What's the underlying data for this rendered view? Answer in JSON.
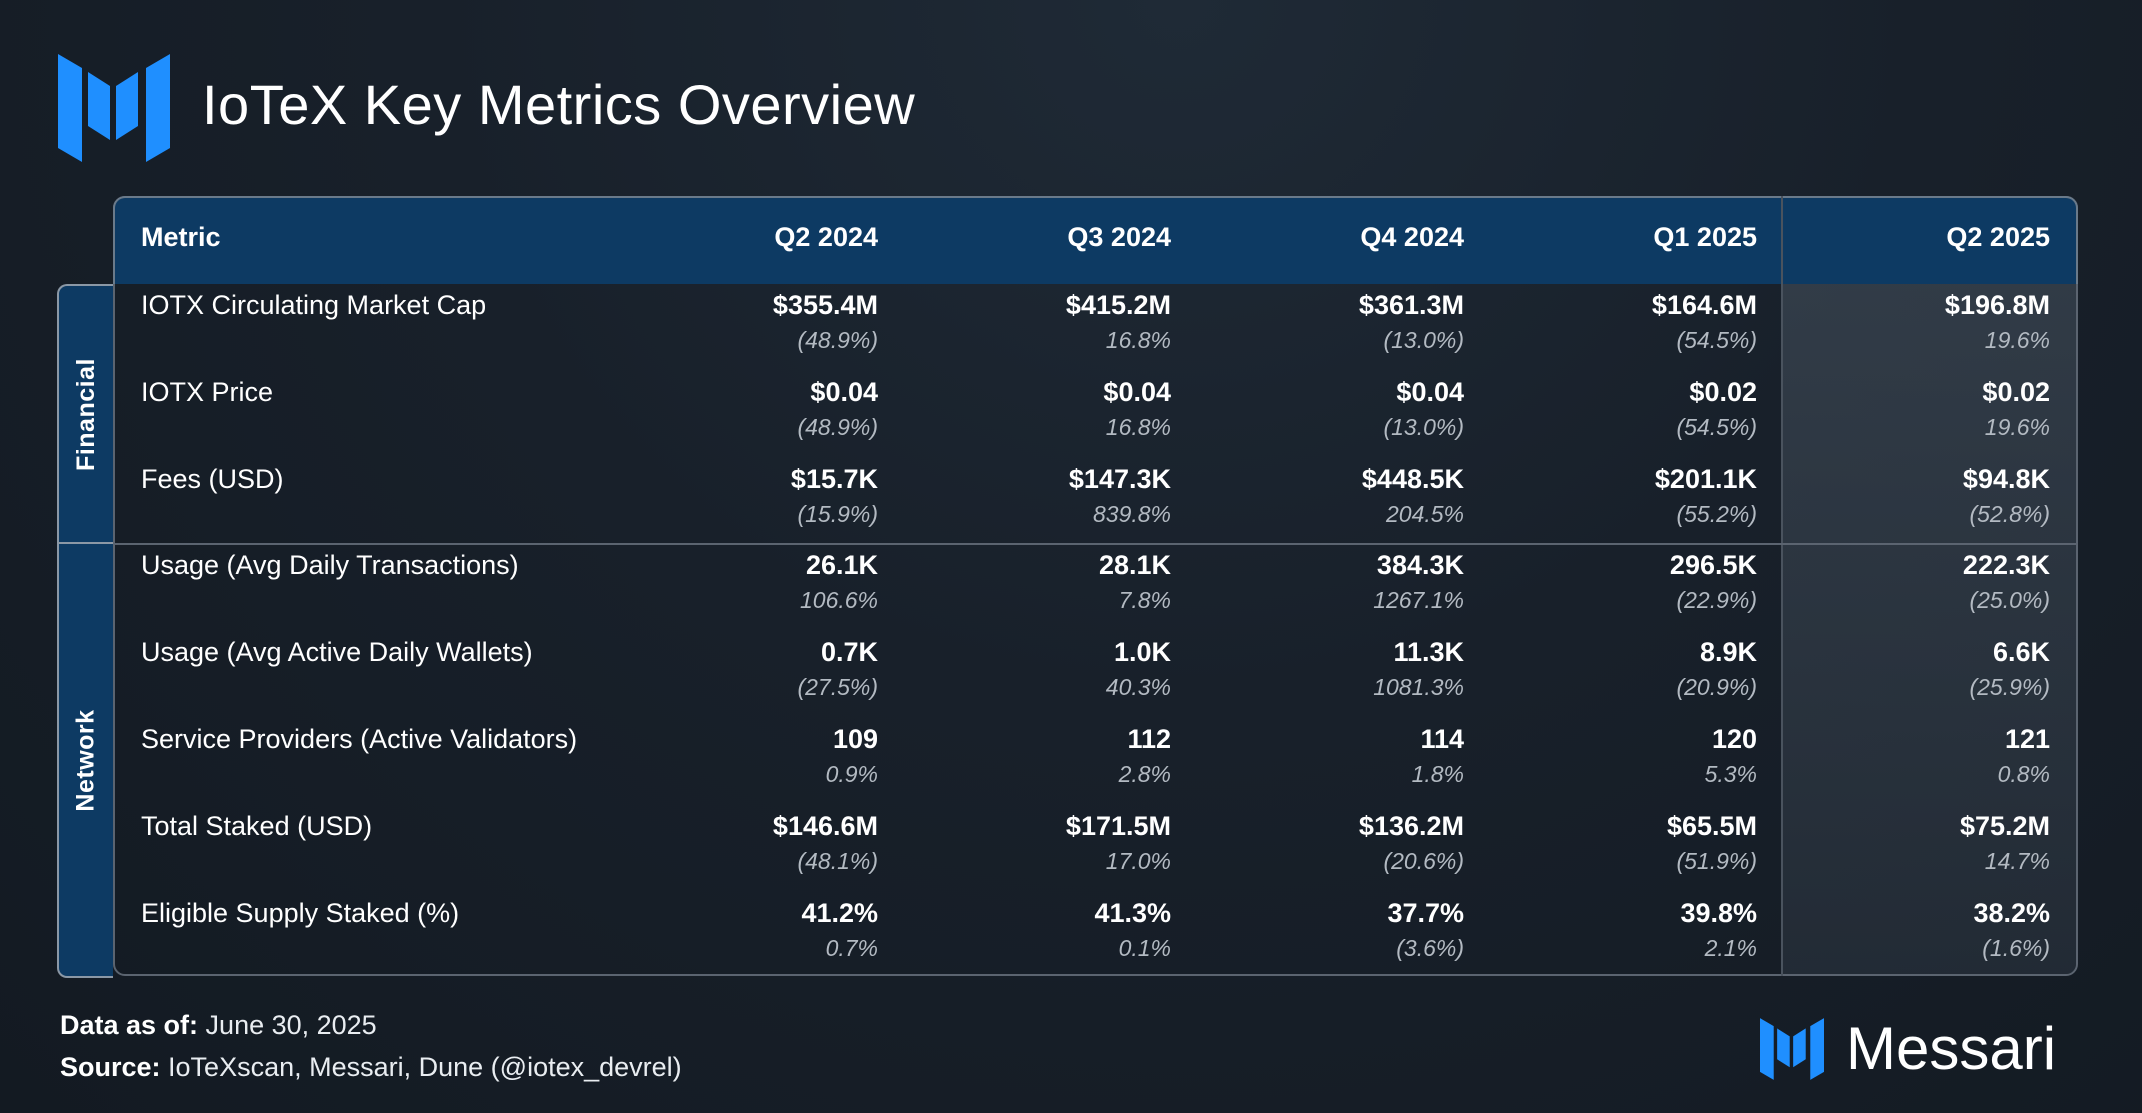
{
  "title": "IoTeX Key Metrics Overview",
  "header": {
    "metric": "Metric",
    "periods": [
      "Q2 2024",
      "Q3 2024",
      "Q4 2024",
      "Q1 2025",
      "Q2 2025"
    ]
  },
  "sections": [
    {
      "label": "Financial",
      "rows": [
        {
          "metric": "IOTX Circulating Market Cap",
          "values": [
            "$355.4M",
            "$415.2M",
            "$361.3M",
            "$164.6M",
            "$196.8M"
          ],
          "changes": [
            "(48.9%)",
            "16.8%",
            "(13.0%)",
            "(54.5%)",
            "19.6%"
          ]
        },
        {
          "metric": "IOTX Price",
          "values": [
            "$0.04",
            "$0.04",
            "$0.04",
            "$0.02",
            "$0.02"
          ],
          "changes": [
            "(48.9%)",
            "16.8%",
            "(13.0%)",
            "(54.5%)",
            "19.6%"
          ]
        },
        {
          "metric": "Fees (USD)",
          "values": [
            "$15.7K",
            "$147.3K",
            "$448.5K",
            "$201.1K",
            "$94.8K"
          ],
          "changes": [
            "(15.9%)",
            "839.8%",
            "204.5%",
            "(55.2%)",
            "(52.8%)"
          ]
        }
      ]
    },
    {
      "label": "Network",
      "rows": [
        {
          "metric": "Usage (Avg Daily Transactions)",
          "values": [
            "26.1K",
            "28.1K",
            "384.3K",
            "296.5K",
            "222.3K"
          ],
          "changes": [
            "106.6%",
            "7.8%",
            "1267.1%",
            "(22.9%)",
            "(25.0%)"
          ]
        },
        {
          "metric": "Usage (Avg Active Daily Wallets)",
          "values": [
            "0.7K",
            "1.0K",
            "11.3K",
            "8.9K",
            "6.6K"
          ],
          "changes": [
            "(27.5%)",
            "40.3%",
            "1081.3%",
            "(20.9%)",
            "(25.9%)"
          ]
        },
        {
          "metric": "Service Providers (Active Validators)",
          "values": [
            "109",
            "112",
            "114",
            "120",
            "121"
          ],
          "changes": [
            "0.9%",
            "2.8%",
            "1.8%",
            "5.3%",
            "0.8%"
          ]
        },
        {
          "metric": "Total Staked (USD)",
          "values": [
            "$146.6M",
            "$171.5M",
            "$136.2M",
            "$65.5M",
            "$75.2M"
          ],
          "changes": [
            "(48.1%)",
            "17.0%",
            "(20.6%)",
            "(51.9%)",
            "14.7%"
          ]
        },
        {
          "metric": "Eligible Supply Staked (%)",
          "values": [
            "41.2%",
            "41.3%",
            "37.7%",
            "39.8%",
            "38.2%"
          ],
          "changes": [
            "0.7%",
            "0.1%",
            "(3.6%)",
            "2.1%",
            "(1.6%)"
          ]
        }
      ]
    }
  ],
  "footer": {
    "data_as_of_label": "Data as of:",
    "data_as_of_value": " June 30, 2025",
    "source_label": "Source:",
    "source_value": " IoTeXscan, Messari, Dune (@iotex_devrel)"
  },
  "brand": {
    "name": "Messari",
    "icon": "messari-logo-icon"
  },
  "colors": {
    "accent_blue": "#1f8fff",
    "header_bg": "#0d3a63"
  }
}
